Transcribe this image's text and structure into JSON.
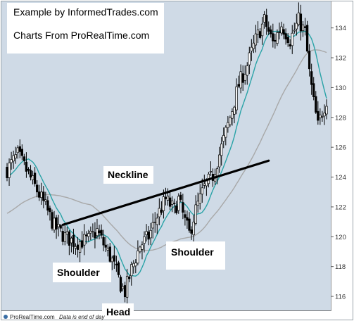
{
  "chart_data": {
    "type": "candlestick",
    "title_lines": [
      "Example by InformedTrades.com",
      "Charts From ProRealTime.com"
    ],
    "annotations": {
      "neckline": "Neckline",
      "left_shoulder": "Shoulder",
      "head": "Head",
      "right_shoulder": "Shoulder"
    },
    "y_axis": {
      "position": "right",
      "ylim": [
        115.2,
        135.4
      ],
      "ticks": [
        116,
        118,
        120,
        122,
        124,
        126,
        128,
        130,
        132,
        134
      ]
    },
    "grid": false,
    "n_bars": 150,
    "anchors": [
      [
        0,
        124.5
      ],
      [
        5,
        125.5
      ],
      [
        10,
        124.2
      ],
      [
        18,
        122.0
      ],
      [
        22,
        120.7
      ],
      [
        27,
        120.0
      ],
      [
        32,
        119.6
      ],
      [
        38,
        119.8
      ],
      [
        42,
        120.4
      ],
      [
        45,
        119.5
      ],
      [
        49,
        118.4
      ],
      [
        53,
        116.8
      ],
      [
        55,
        116.3
      ],
      [
        58,
        117.8
      ],
      [
        62,
        119.4
      ],
      [
        66,
        120.0
      ],
      [
        70,
        121.4
      ],
      [
        74,
        122.5
      ],
      [
        78,
        121.8
      ],
      [
        80,
        122.5
      ],
      [
        83,
        121.0
      ],
      [
        85,
        120.2
      ],
      [
        88,
        121.8
      ],
      [
        92,
        123.3
      ],
      [
        96,
        124.1
      ],
      [
        100,
        126.0
      ],
      [
        104,
        128.0
      ],
      [
        108,
        130.2
      ],
      [
        112,
        131.5
      ],
      [
        116,
        133.2
      ],
      [
        120,
        134.5
      ],
      [
        124,
        133.0
      ],
      [
        128,
        134.2
      ],
      [
        132,
        133.2
      ],
      [
        136,
        134.5
      ],
      [
        139,
        133.7
      ],
      [
        141,
        131.0
      ],
      [
        143,
        129.0
      ],
      [
        145,
        127.4
      ],
      [
        147,
        128.4
      ],
      [
        149,
        129.2
      ]
    ],
    "series": [
      {
        "style": "candles",
        "color": "#000000"
      },
      {
        "style": "line",
        "period": 10,
        "color": "#2aa3a7"
      },
      {
        "style": "line",
        "period": 40,
        "color": "#a8a8a8"
      }
    ],
    "neckline_values": [
      [
        26,
        120.8
      ],
      [
        122,
        125.1
      ]
    ],
    "footer": {
      "brand": "ProRealTime.com",
      "note": "Data is end of day"
    },
    "colors": {
      "plot_background": "#cfdae6",
      "neckline": "#000000",
      "axis_background": "#ffffff"
    }
  }
}
